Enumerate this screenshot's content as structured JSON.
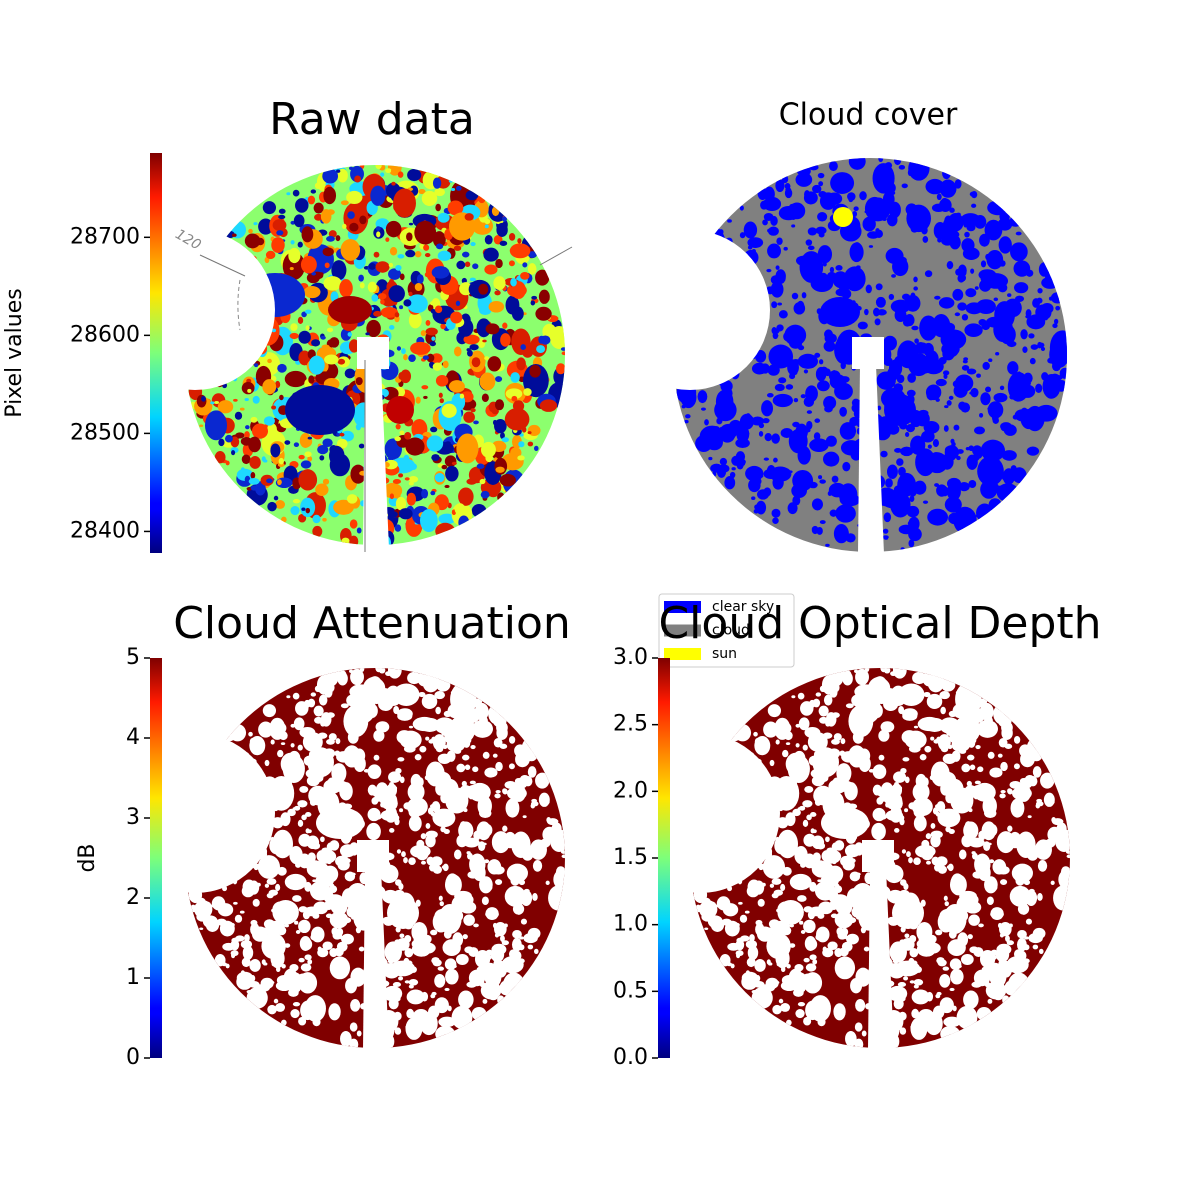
{
  "chart_data": [
    {
      "type": "image",
      "title": "Raw data",
      "colorbar": {
        "label": "Pixel values",
        "colormap": "jet",
        "ylim": [
          28378,
          28786
        ],
        "yticks": [
          28400,
          28500,
          28600,
          28700
        ]
      },
      "annotations": [
        "120"
      ]
    },
    {
      "type": "image",
      "title": "Cloud cover",
      "legend": [
        {
          "name": "clear sky",
          "color": "#0000ff"
        },
        {
          "name": "cloud",
          "color": "#808080"
        },
        {
          "name": "sun",
          "color": "#ffff00"
        }
      ]
    },
    {
      "type": "image",
      "title": "Cloud Attenuation",
      "colorbar": {
        "label": "dB",
        "colormap": "jet",
        "ylim": [
          0,
          5
        ],
        "yticks": [
          0,
          1,
          2,
          3,
          4,
          5
        ]
      }
    },
    {
      "type": "image",
      "title": "Cloud Optical Depth",
      "colorbar": {
        "colormap": "jet",
        "ylim": [
          0,
          3
        ],
        "yticks": [
          {
            "value": 0,
            "label": "0.0"
          },
          0.5,
          {
            "value": 1,
            "label": "1.0"
          },
          1.5,
          {
            "value": 2,
            "label": "2.0"
          },
          2.5,
          {
            "value": 3,
            "label": "3.0"
          }
        ]
      }
    }
  ]
}
